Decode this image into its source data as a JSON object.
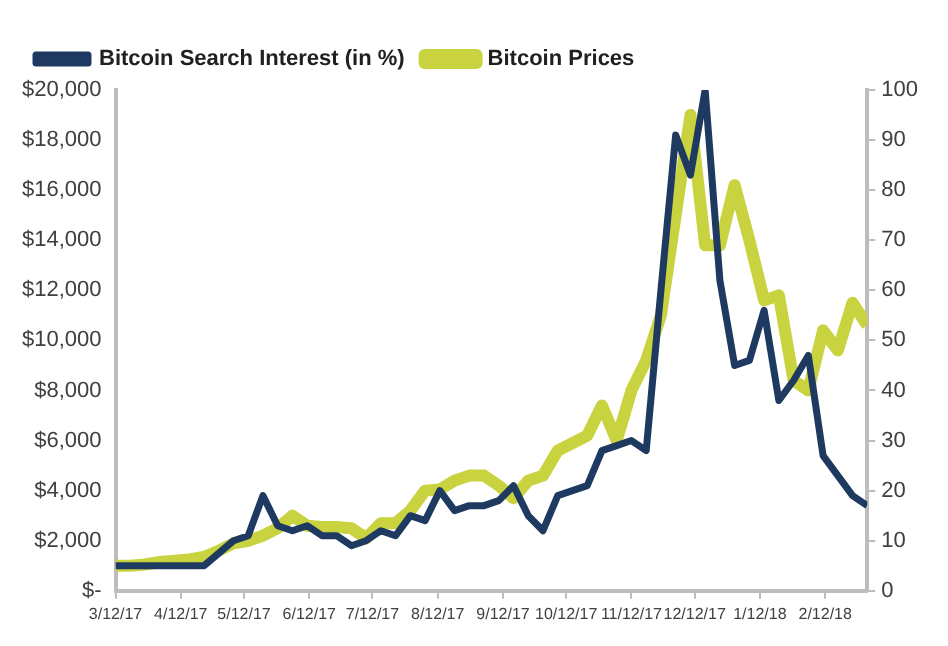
{
  "chart_data": {
    "type": "line",
    "legend": "top left",
    "grid": false,
    "marker": "none",
    "line_style": "solid",
    "x": [
      "2017-03-12",
      "2017-03-19",
      "2017-03-26",
      "2017-04-02",
      "2017-04-09",
      "2017-04-16",
      "2017-04-23",
      "2017-04-30",
      "2017-05-07",
      "2017-05-14",
      "2017-05-21",
      "2017-05-28",
      "2017-06-04",
      "2017-06-11",
      "2017-06-18",
      "2017-06-25",
      "2017-07-02",
      "2017-07-09",
      "2017-07-16",
      "2017-07-23",
      "2017-07-30",
      "2017-08-06",
      "2017-08-13",
      "2017-08-20",
      "2017-08-27",
      "2017-09-03",
      "2017-09-10",
      "2017-09-17",
      "2017-09-24",
      "2017-10-01",
      "2017-10-08",
      "2017-10-15",
      "2017-10-22",
      "2017-10-29",
      "2017-11-05",
      "2017-11-12",
      "2017-11-19",
      "2017-11-26",
      "2017-12-03",
      "2017-12-10",
      "2017-12-17",
      "2017-12-24",
      "2017-12-31",
      "2018-01-07",
      "2018-01-14",
      "2018-01-21",
      "2018-01-28",
      "2018-02-04",
      "2018-02-11",
      "2018-02-18",
      "2018-02-25",
      "2018-03-04"
    ],
    "series": [
      {
        "name": "Bitcoin Prices",
        "color": "#c9d33f",
        "values": [
          1000,
          1000,
          1050,
          1150,
          1200,
          1250,
          1350,
          1600,
          1900,
          2000,
          2200,
          2500,
          3000,
          2600,
          2550,
          2550,
          2500,
          2100,
          2700,
          2700,
          3200,
          4000,
          4050,
          4400,
          4600,
          4600,
          4200,
          3700,
          4400,
          4600,
          5600,
          5900,
          6200,
          7400,
          6000,
          8000,
          9200,
          11000,
          15000,
          19000,
          13800,
          13800,
          16200,
          14000,
          11600,
          11800,
          8400,
          8000,
          10400,
          9600,
          11500,
          10600
        ]
      },
      {
        "name": "Bitcoin Search Interest (in %)",
        "color": "#1f3a60",
        "axis": "y2",
        "values": [
          5,
          5,
          5,
          5,
          5,
          5,
          5,
          7.5,
          10,
          11,
          19,
          13,
          12,
          13,
          11,
          11,
          9,
          10,
          12,
          11,
          15,
          14,
          20,
          16,
          17,
          17,
          18,
          21,
          15,
          12,
          19,
          20,
          21,
          28,
          29,
          30,
          28,
          60,
          91,
          83,
          100,
          62,
          45,
          46,
          56,
          38,
          42,
          47,
          27,
          23,
          19,
          17
        ]
      }
    ],
    "xlim": [
      "2017-03-12",
      "2018-03-04"
    ],
    "xticks": [
      {
        "value": "2017-03-12",
        "label": "3/12/17"
      },
      {
        "value": "2017-04-12",
        "label": "4/12/17"
      },
      {
        "value": "2017-05-12",
        "label": "5/12/17"
      },
      {
        "value": "2017-06-12",
        "label": "6/12/17"
      },
      {
        "value": "2017-07-12",
        "label": "7/12/17"
      },
      {
        "value": "2017-08-12",
        "label": "8/12/17"
      },
      {
        "value": "2017-09-12",
        "label": "9/12/17"
      },
      {
        "value": "2017-10-12",
        "label": "10/12/17"
      },
      {
        "value": "2017-11-12",
        "label": "11/12/17"
      },
      {
        "value": "2017-12-12",
        "label": "12/12/17"
      },
      {
        "value": "2018-01-12",
        "label": "1/12/18"
      },
      {
        "value": "2018-02-12",
        "label": "2/12/18"
      }
    ],
    "ylim": [
      0,
      20000
    ],
    "yticks": [
      {
        "value": 0,
        "label": "$-"
      },
      {
        "value": 2000,
        "label": "$2,000"
      },
      {
        "value": 4000,
        "label": "$4,000"
      },
      {
        "value": 6000,
        "label": "$6,000"
      },
      {
        "value": 8000,
        "label": "$8,000"
      },
      {
        "value": 10000,
        "label": "$10,000"
      },
      {
        "value": 12000,
        "label": "$12,000"
      },
      {
        "value": 14000,
        "label": "$14,000"
      },
      {
        "value": 16000,
        "label": "$16,000"
      },
      {
        "value": 18000,
        "label": "$18,000"
      },
      {
        "value": 20000,
        "label": "$20,000"
      }
    ],
    "y2lim": [
      0,
      100
    ],
    "y2ticks": [
      0,
      10,
      20,
      30,
      40,
      50,
      60,
      70,
      80,
      90,
      100
    ]
  }
}
